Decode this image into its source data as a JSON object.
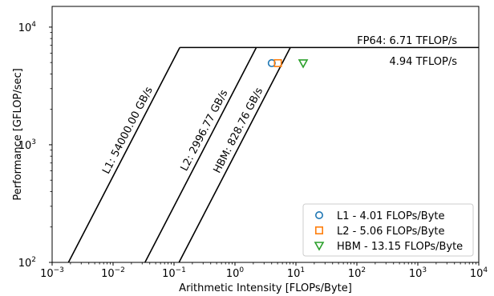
{
  "chart_data": {
    "type": "line",
    "xlabel": "Arithmetic Intensity [FLOPs/Byte]",
    "ylabel": "Performance [GFLOP/sec]",
    "xscale": "log",
    "yscale": "log",
    "xlim": [
      0.001,
      10000
    ],
    "ylim": [
      100,
      15000
    ],
    "x_ticks": [
      {
        "value": 0.001,
        "base": "10",
        "exp": "−3"
      },
      {
        "value": 0.01,
        "base": "10",
        "exp": "−2"
      },
      {
        "value": 0.1,
        "base": "10",
        "exp": "−1"
      },
      {
        "value": 1,
        "base": "10",
        "exp": "0"
      },
      {
        "value": 10,
        "base": "10",
        "exp": "1"
      },
      {
        "value": 100,
        "base": "10",
        "exp": "2"
      },
      {
        "value": 1000,
        "base": "10",
        "exp": "3"
      },
      {
        "value": 10000,
        "base": "10",
        "exp": "4"
      }
    ],
    "y_ticks": [
      {
        "value": 100,
        "base": "10",
        "exp": "2"
      },
      {
        "value": 1000,
        "base": "10",
        "exp": "3"
      },
      {
        "value": 10000,
        "base": "10",
        "exp": "4"
      }
    ],
    "peak": {
      "value": 6710,
      "label": "FP64: 6.71 TFLOP/s"
    },
    "achieved_label": "4.94 TFLOP/s",
    "bandwidths": [
      {
        "name": "L1",
        "gbps": 54000.0,
        "label": "L1: 54000.00 GB/s"
      },
      {
        "name": "L2",
        "gbps": 2996.77,
        "label": "L2: 2996.77 GB/s"
      },
      {
        "name": "HBM",
        "gbps": 828.76,
        "label": "HBM: 828.76 GB/s"
      }
    ],
    "points": [
      {
        "name": "L1 - 4.01 FLOPs/Byte",
        "x": 4.01,
        "y": 4940,
        "marker": "circle",
        "color": "#1f77b4"
      },
      {
        "name": "L2 - 5.06 FLOPs/Byte",
        "x": 5.06,
        "y": 4940,
        "marker": "square",
        "color": "#ff7f0e"
      },
      {
        "name": "HBM - 13.15 FLOPs/Byte",
        "x": 13.15,
        "y": 4940,
        "marker": "triangle-down",
        "color": "#2ca02c"
      }
    ],
    "legend_position": "lower-right",
    "grid": false
  }
}
